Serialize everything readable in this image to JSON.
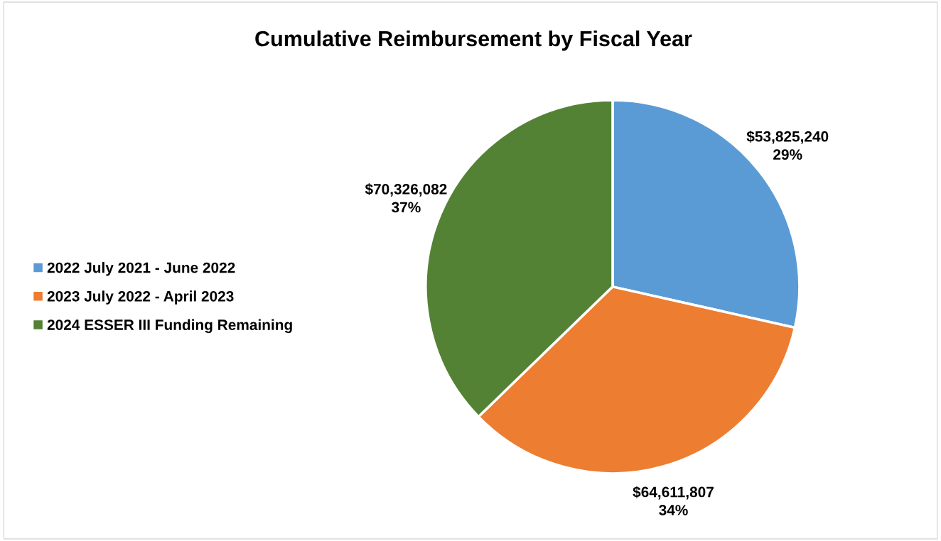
{
  "chart_data": {
    "type": "pie",
    "title": "Cumulative Reimbursement by Fiscal Year",
    "categories": [
      "2022 July 2021 - June 2022",
      "2023 July 2022 - April 2023",
      "2024 ESSER III Funding Remaining"
    ],
    "values": [
      53825240,
      64611807,
      70326082
    ],
    "colors": [
      "#5b9bd5",
      "#ed7d31",
      "#548235"
    ],
    "value_labels": [
      "$53,825,240\n29%",
      "$64,611,807\n34%",
      "$70,326,082\n37%"
    ],
    "legend": "left"
  }
}
